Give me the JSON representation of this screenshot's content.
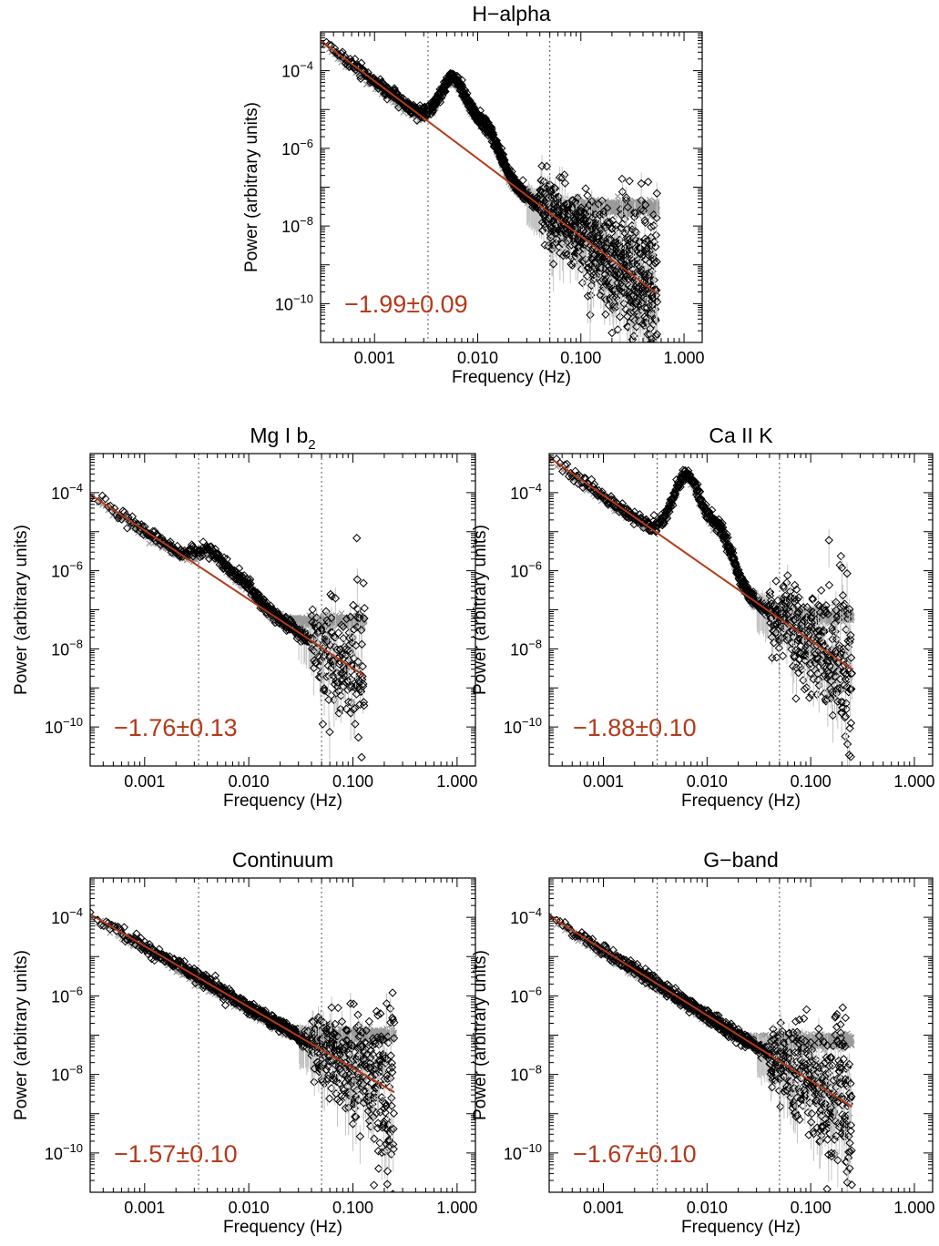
{
  "colors": {
    "fit": "#b5391a",
    "noise": "#9a9a9a",
    "data": "#000000",
    "errorbar": "#c4c4c4",
    "vline": "#555555"
  },
  "chart_data": [
    {
      "type": "scatter",
      "title": "H−alpha",
      "title_sub": "",
      "xlabel": "Frequency (Hz)",
      "ylabel": "Power (arbitrary units)",
      "xscale": "log",
      "yscale": "log",
      "xlim": [
        0.0003,
        1.5
      ],
      "ylim": [
        1e-11,
        0.001
      ],
      "xticks": [
        {
          "v": 0.001,
          "label": "0.001"
        },
        {
          "v": 0.01,
          "label": "0.010"
        },
        {
          "v": 0.1,
          "label": "0.100"
        },
        {
          "v": 1,
          "label": "1.000"
        }
      ],
      "yticks": [
        {
          "v": 0.0001,
          "exp": "−4"
        },
        {
          "v": 1e-06,
          "exp": "−6"
        },
        {
          "v": 1e-08,
          "exp": "−8"
        },
        {
          "v": 1e-10,
          "exp": "−10"
        }
      ],
      "vlines": [
        0.0033,
        0.05
      ],
      "fmax": 0.55,
      "slope": -1.99,
      "noise_level": 3e-08,
      "fit_line": {
        "x": [
          0.0003,
          0.55
        ],
        "y": [
          0.0006,
          1.8e-10
        ]
      },
      "bump": {
        "f": 0.006,
        "amp": 1.6
      },
      "slope_label": "−1.99±0.09"
    },
    {
      "type": "scatter",
      "title": "Mg I b",
      "title_sub": "2",
      "xlabel": "Frequency (Hz)",
      "ylabel": "Power (arbitrary units)",
      "xscale": "log",
      "yscale": "log",
      "xlim": [
        0.0003,
        1.5
      ],
      "ylim": [
        1e-11,
        0.001
      ],
      "xticks": [
        {
          "v": 0.001,
          "label": "0.001"
        },
        {
          "v": 0.01,
          "label": "0.010"
        },
        {
          "v": 0.1,
          "label": "0.100"
        },
        {
          "v": 1,
          "label": "1.000"
        }
      ],
      "yticks": [
        {
          "v": 0.0001,
          "exp": "−4"
        },
        {
          "v": 1e-06,
          "exp": "−6"
        },
        {
          "v": 1e-08,
          "exp": "−8"
        },
        {
          "v": 1e-10,
          "exp": "−10"
        }
      ],
      "vlines": [
        0.0033,
        0.05
      ],
      "fmax": 0.13,
      "slope": -1.76,
      "noise_level": 5e-08,
      "fit_line": {
        "x": [
          0.0003,
          0.13
        ],
        "y": [
          9e-05,
          2e-09
        ]
      },
      "bump": {
        "f": 0.0045,
        "amp": 0.6
      },
      "slope_label": "−1.76±0.13"
    },
    {
      "type": "scatter",
      "title": "Ca II K",
      "title_sub": "",
      "xlabel": "Frequency (Hz)",
      "ylabel": "Power (arbitrary units)",
      "xscale": "log",
      "yscale": "log",
      "xlim": [
        0.0003,
        1.5
      ],
      "ylim": [
        1e-11,
        0.001
      ],
      "xticks": [
        {
          "v": 0.001,
          "label": "0.001"
        },
        {
          "v": 0.01,
          "label": "0.010"
        },
        {
          "v": 0.1,
          "label": "0.100"
        },
        {
          "v": 1,
          "label": "1.000"
        }
      ],
      "yticks": [
        {
          "v": 0.0001,
          "exp": "−4"
        },
        {
          "v": 1e-06,
          "exp": "−6"
        },
        {
          "v": 1e-08,
          "exp": "−8"
        },
        {
          "v": 1e-10,
          "exp": "−10"
        }
      ],
      "vlines": [
        0.0033,
        0.05
      ],
      "fmax": 0.25,
      "slope": -1.88,
      "noise_level": 7e-08,
      "fit_line": {
        "x": [
          0.0003,
          0.25
        ],
        "y": [
          0.0008,
          3e-09
        ]
      },
      "bump": {
        "f": 0.0065,
        "amp": 2.0
      },
      "slope_label": "−1.88±0.10"
    },
    {
      "type": "scatter",
      "title": "Continuum",
      "title_sub": "",
      "xlabel": "Frequency (Hz)",
      "ylabel": "Power (arbitrary units)",
      "xscale": "log",
      "yscale": "log",
      "xlim": [
        0.0003,
        1.5
      ],
      "ylim": [
        1e-11,
        0.001
      ],
      "xticks": [
        {
          "v": 0.001,
          "label": "0.001"
        },
        {
          "v": 0.01,
          "label": "0.010"
        },
        {
          "v": 0.1,
          "label": "0.100"
        },
        {
          "v": 1,
          "label": "1.000"
        }
      ],
      "yticks": [
        {
          "v": 0.0001,
          "exp": "−4"
        },
        {
          "v": 1e-06,
          "exp": "−6"
        },
        {
          "v": 1e-08,
          "exp": "−8"
        },
        {
          "v": 1e-10,
          "exp": "−10"
        }
      ],
      "vlines": [
        0.0033,
        0.05
      ],
      "fmax": 0.25,
      "slope": -1.57,
      "noise_level": 1e-07,
      "fit_line": {
        "x": [
          0.0003,
          0.25
        ],
        "y": [
          0.00012,
          3.5e-09
        ]
      },
      "bump": {
        "f": 0.0045,
        "amp": 0
      },
      "slope_label": "−1.57±0.10"
    },
    {
      "type": "scatter",
      "title": "G−band",
      "title_sub": "",
      "xlabel": "Frequency (Hz)",
      "ylabel": "Power (arbitrary units)",
      "xscale": "log",
      "yscale": "log",
      "xlim": [
        0.0003,
        1.5
      ],
      "ylim": [
        1e-11,
        0.001
      ],
      "xticks": [
        {
          "v": 0.001,
          "label": "0.001"
        },
        {
          "v": 0.01,
          "label": "0.010"
        },
        {
          "v": 0.1,
          "label": "0.100"
        },
        {
          "v": 1,
          "label": "1.000"
        }
      ],
      "yticks": [
        {
          "v": 0.0001,
          "exp": "−4"
        },
        {
          "v": 1e-06,
          "exp": "−6"
        },
        {
          "v": 1e-08,
          "exp": "−8"
        },
        {
          "v": 1e-10,
          "exp": "−10"
        }
      ],
      "vlines": [
        0.0033,
        0.05
      ],
      "fmax": 0.25,
      "slope": -1.67,
      "noise_level": 7e-08,
      "fit_line": {
        "x": [
          0.0003,
          0.25
        ],
        "y": [
          0.00011,
          1.5e-09
        ]
      },
      "bump": {
        "f": 0.0045,
        "amp": 0
      },
      "slope_label": "−1.67±0.10"
    }
  ]
}
